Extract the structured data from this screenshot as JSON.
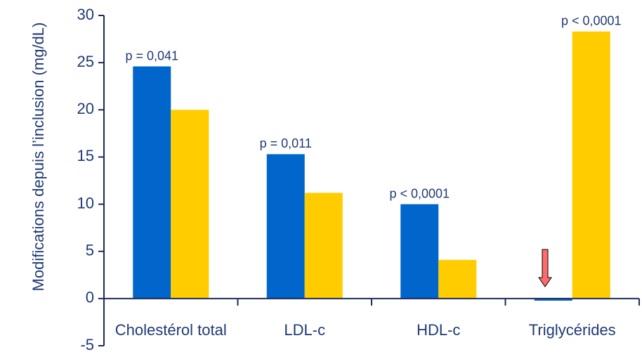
{
  "chart_data": {
    "type": "bar",
    "y_label": "Modifications depuis l’inclusion (mg/dL)",
    "categories": [
      "Cholestérol total",
      "LDL-c",
      "HDL-c",
      "Triglycérides"
    ],
    "series": [
      {
        "color": "#0066cc",
        "values": [
          24.6,
          15.3,
          10.0,
          -0.2
        ]
      },
      {
        "color": "#ffcc00",
        "values": [
          20.0,
          11.2,
          4.1,
          28.3
        ]
      }
    ],
    "p_values": [
      "p = 0,041",
      "p = 0,011",
      "p < 0,0001",
      "p < 0,0001"
    ],
    "ylim": [
      -5,
      30
    ],
    "yticks": [
      -5,
      0,
      5,
      10,
      15,
      20,
      25,
      30
    ],
    "grid": false
  }
}
